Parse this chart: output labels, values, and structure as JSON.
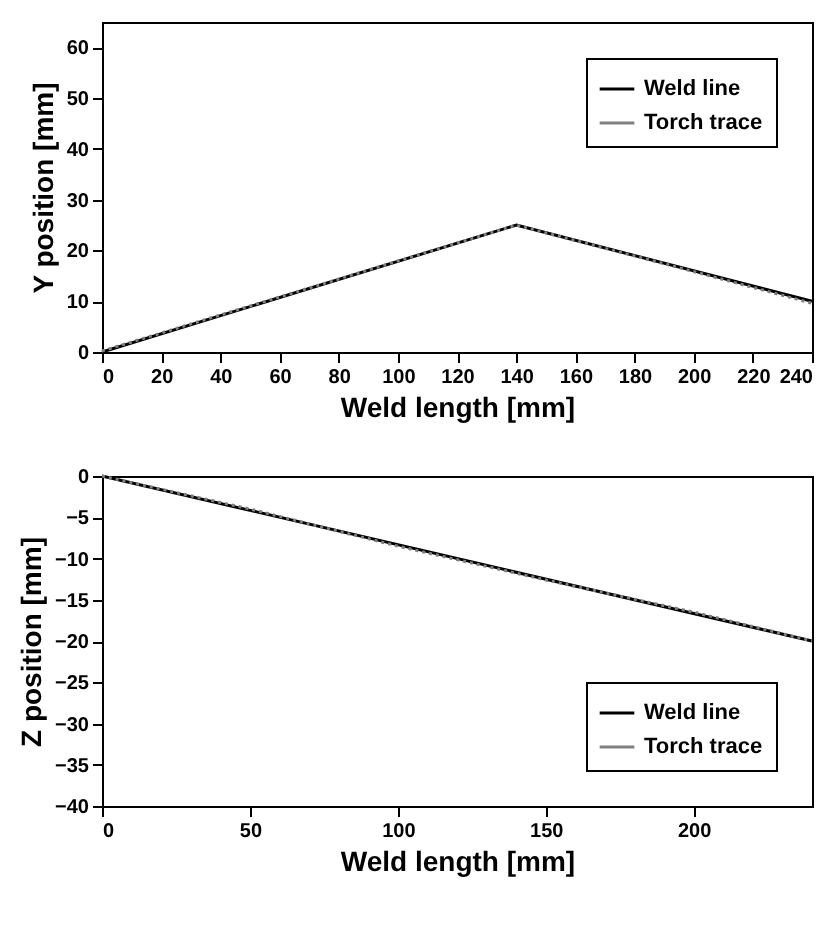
{
  "chart_data": [
    {
      "type": "line",
      "xlabel": "Weld length [mm]",
      "ylabel": "Y position [mm]",
      "xlim": [
        0,
        240
      ],
      "ylim": [
        0,
        65
      ],
      "xticks": [
        0,
        20,
        40,
        60,
        80,
        100,
        120,
        140,
        160,
        180,
        200,
        220,
        240
      ],
      "yticks": [
        0,
        10,
        20,
        30,
        40,
        50,
        60
      ],
      "legend": "top right",
      "series": [
        {
          "name": "Weld line",
          "color": "#000000",
          "line_style": "solid",
          "x": [
            0,
            140,
            240
          ],
          "values": [
            0,
            25,
            10
          ]
        },
        {
          "name": "Torch trace",
          "color": "#808080",
          "line_style": "dotted",
          "x": [
            0,
            70,
            140,
            190,
            240
          ],
          "values": [
            0.2,
            12.6,
            25,
            17.4,
            9.6
          ]
        }
      ]
    },
    {
      "type": "line",
      "xlabel": "Weld length [mm]",
      "ylabel": "Z position [mm]",
      "xlim": [
        0,
        240
      ],
      "ylim": [
        -40,
        0
      ],
      "xticks": [
        0,
        50,
        100,
        150,
        200
      ],
      "yticks": [
        -40,
        -35,
        -30,
        -25,
        -20,
        -15,
        -10,
        -5,
        0
      ],
      "legend": "bottom right",
      "series": [
        {
          "name": "Weld line",
          "color": "#000000",
          "line_style": "solid",
          "x": [
            0,
            240
          ],
          "values": [
            0,
            -20
          ]
        },
        {
          "name": "Torch trace",
          "color": "#808080",
          "line_style": "dotted",
          "x": [
            0,
            50,
            100,
            150,
            200,
            240
          ],
          "values": [
            0,
            -4,
            -8.5,
            -12.6,
            -16.5,
            -20
          ]
        }
      ]
    }
  ]
}
